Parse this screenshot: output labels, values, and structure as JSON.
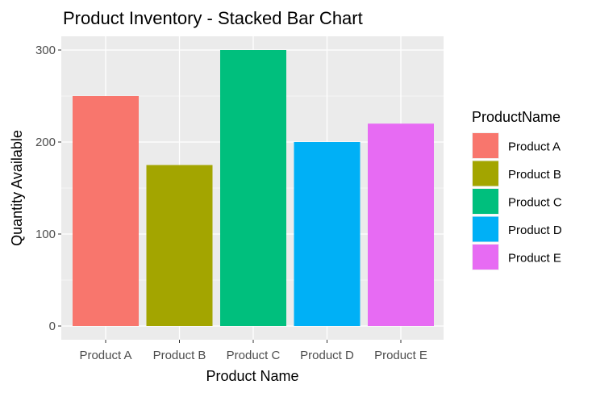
{
  "chart_data": {
    "type": "bar",
    "title": "Product Inventory - Stacked Bar Chart",
    "xlabel": "Product Name",
    "ylabel": "Quantity Available",
    "categories": [
      "Product A",
      "Product B",
      "Product C",
      "Product D",
      "Product E"
    ],
    "values": [
      250,
      175,
      300,
      200,
      220
    ],
    "colors": [
      "#F8766D",
      "#A3A500",
      "#00BF7D",
      "#00B0F6",
      "#E76BF3"
    ],
    "ylim": [
      0,
      325
    ],
    "yticks": [
      0,
      100,
      200,
      300
    ],
    "grid": true,
    "legend": {
      "title": "ProductName",
      "position": "right",
      "entries": [
        "Product A",
        "Product B",
        "Product C",
        "Product D",
        "Product E"
      ]
    },
    "panel_background": "#EBEBEB",
    "grid_color": "#FFFFFF"
  }
}
